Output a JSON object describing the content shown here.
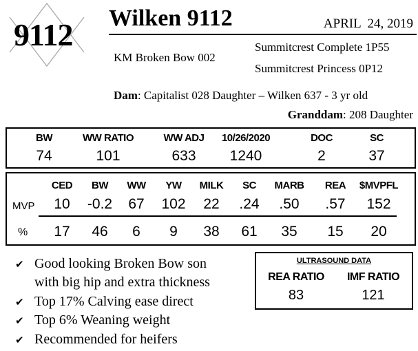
{
  "lot": {
    "number": "9112",
    "logo_icon": "diamond-outline-icon"
  },
  "header": {
    "title": "Wilken 9112",
    "date": "APRIL  24, 2019"
  },
  "pedigree": {
    "sire": "KM Broken Bow 002",
    "sire_sire": "Summitcrest Complete 1P55",
    "sire_dam": "Summitcrest Princess 0P12",
    "dam_label": "Dam",
    "dam_value": ": Capitalist 028 Daughter – Wilken 637 - 3 yr old",
    "granddam_label": "Granddam",
    "granddam_value": ": 208 Daughter"
  },
  "performance": {
    "headers": [
      "BW",
      "WW RATIO",
      "WW ADJ",
      "10/26/2020",
      "DOC",
      "SC"
    ],
    "values": [
      "74",
      "101",
      "633",
      "1240",
      "2",
      "37"
    ]
  },
  "epd": {
    "headers": [
      "CED",
      "BW",
      "WW",
      "YW",
      "MILK",
      "SC",
      "MARB",
      "REA",
      "$MVPFL"
    ],
    "mvp_label": "MVP",
    "mvp": [
      "10",
      "-0.2",
      "67",
      "102",
      "22",
      ".24",
      ".50",
      ".57",
      "152"
    ],
    "pct_label": "%",
    "pct": [
      "17",
      "46",
      "6",
      "9",
      "38",
      "61",
      "35",
      "15",
      "20"
    ]
  },
  "bullets": [
    "Good looking Broken Bow son",
    "with big hip and extra thickness",
    "Top 17% Calving ease direct",
    "Top 6% Weaning weight",
    "Recommended for heifers"
  ],
  "ultrasound": {
    "title": "ULTRASOUND DATA",
    "headers": [
      "REA RATIO",
      "IMF RATIO"
    ],
    "values": [
      "83",
      "121"
    ]
  }
}
